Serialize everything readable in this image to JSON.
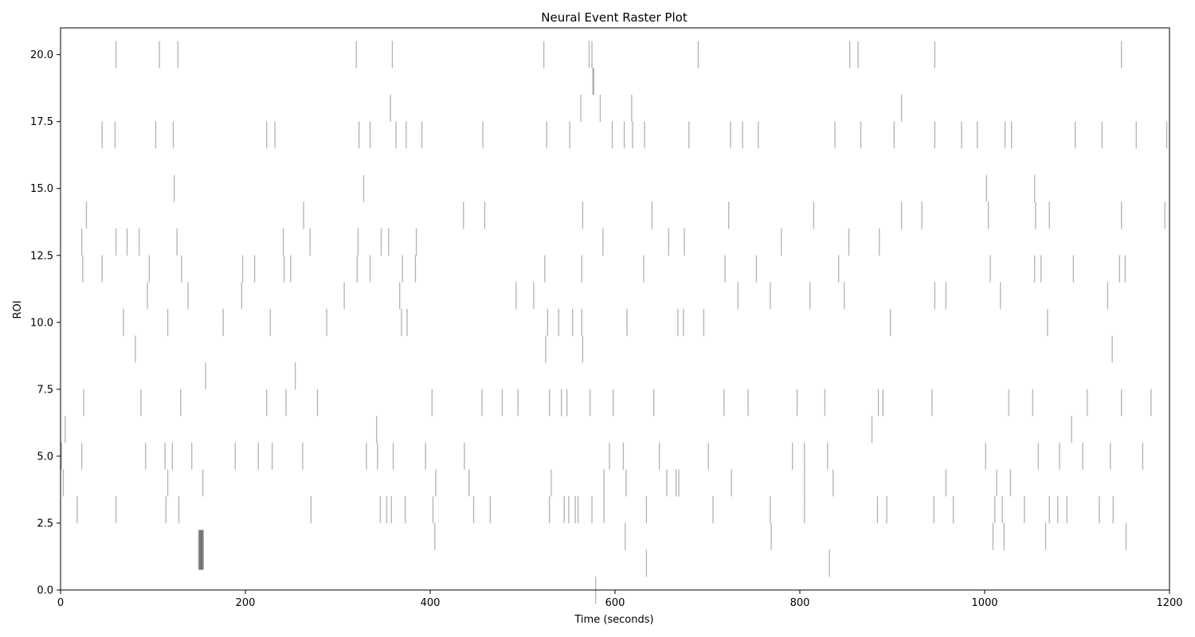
{
  "chart_data": {
    "type": "heatmap",
    "title": "Neural Event Raster Plot",
    "xlabel": "Time (seconds)",
    "ylabel": "ROI",
    "xlim": [
      0,
      1200
    ],
    "ylim": [
      0,
      21
    ],
    "xticks": [
      0,
      200,
      400,
      600,
      800,
      1000,
      1200
    ],
    "xtick_labels": [
      "0",
      "200",
      "400",
      "600",
      "800",
      "1000",
      "1200"
    ],
    "yticks": [
      0,
      2.5,
      5,
      7.5,
      10,
      12.5,
      15,
      17.5,
      20
    ],
    "ytick_labels": [
      "0.0",
      "2.5",
      "5.0",
      "7.5",
      "10.0",
      "12.5",
      "15.0",
      "17.5",
      "20.0"
    ],
    "grid": false,
    "colormap": "gray_r",
    "events": [
      {
        "roi": 20,
        "times": [
          60,
          107,
          127,
          320,
          359,
          523,
          572,
          575,
          690,
          854,
          863,
          946,
          1148
        ]
      },
      {
        "roi": 19,
        "times": [
          576,
          577
        ]
      },
      {
        "roi": 18,
        "times": [
          357,
          563,
          584,
          618,
          910
        ]
      },
      {
        "roi": 17,
        "times": [
          45,
          59,
          103,
          122,
          223,
          232,
          323,
          335,
          363,
          374,
          391,
          457,
          526,
          551,
          597,
          610,
          619,
          632,
          680,
          725,
          738,
          755,
          838,
          866,
          902,
          946,
          975,
          992,
          1022,
          1029,
          1098,
          1127,
          1164,
          1197
        ]
      },
      {
        "roi": 15,
        "times": [
          123,
          328,
          1002,
          1054
        ]
      },
      {
        "roi": 14,
        "times": [
          28,
          263,
          436,
          459,
          565,
          640,
          723,
          815,
          910,
          932,
          1004,
          1055,
          1070,
          1148,
          1195
        ]
      },
      {
        "roi": 13,
        "times": [
          23,
          60,
          72,
          85,
          126,
          241,
          270,
          322,
          347,
          355,
          385,
          587,
          658,
          675,
          780,
          853,
          886
        ]
      },
      {
        "roi": 12,
        "times": [
          24,
          45,
          96,
          131,
          197,
          210,
          242,
          249,
          321,
          335,
          370,
          384,
          524,
          564,
          631,
          719,
          753,
          842,
          1006,
          1054,
          1061,
          1096,
          1146,
          1152
        ]
      },
      {
        "roi": 11,
        "times": [
          94,
          138,
          196,
          307,
          367,
          493,
          512,
          733,
          768,
          811,
          848,
          946,
          958,
          1017,
          1133
        ]
      },
      {
        "roi": 10,
        "times": [
          68,
          116,
          176,
          227,
          288,
          369,
          375,
          527,
          539,
          554,
          564,
          613,
          668,
          674,
          696,
          898,
          1068
        ]
      },
      {
        "roi": 9,
        "times": [
          81,
          525,
          565,
          1138
        ]
      },
      {
        "roi": 8,
        "times": [
          157,
          254
        ]
      },
      {
        "roi": 7,
        "times": [
          25,
          87,
          130,
          223,
          244,
          278,
          402,
          456,
          478,
          495,
          529,
          542,
          548,
          573,
          598,
          642,
          718,
          744,
          797,
          827,
          885,
          890,
          943,
          1026,
          1052,
          1111,
          1148,
          1180
        ]
      },
      {
        "roi": 6,
        "times": [
          5,
          342,
          878,
          1094
        ]
      },
      {
        "roi": 5,
        "times": [
          1,
          23,
          92,
          113,
          121,
          142,
          189,
          214,
          229,
          262,
          331,
          343,
          360,
          395,
          437,
          594,
          609,
          648,
          701,
          792,
          805,
          830,
          1001,
          1058,
          1081,
          1106,
          1136,
          1171
        ]
      },
      {
        "roi": 4,
        "times": [
          3,
          116,
          154,
          406,
          442,
          531,
          588,
          612,
          656,
          666,
          669,
          726,
          805,
          836,
          958,
          1013,
          1028
        ]
      },
      {
        "roi": 3,
        "times": [
          18,
          60,
          114,
          128,
          271,
          346,
          353,
          358,
          373,
          403,
          447,
          465,
          529,
          545,
          550,
          557,
          560,
          575,
          588,
          634,
          706,
          768,
          805,
          884,
          894,
          945,
          966,
          1011,
          1019,
          1043,
          1070,
          1079,
          1089,
          1124,
          1139
        ]
      },
      {
        "roi": 2,
        "times": [
          405,
          611,
          769,
          1009,
          1021,
          1066,
          1153
        ]
      },
      {
        "roi": 1.5,
        "times": [
          150,
          151,
          152,
          153,
          154
        ]
      },
      {
        "roi": 1,
        "times": [
          634,
          832
        ]
      },
      {
        "roi": 0,
        "times": [
          579
        ]
      }
    ]
  }
}
